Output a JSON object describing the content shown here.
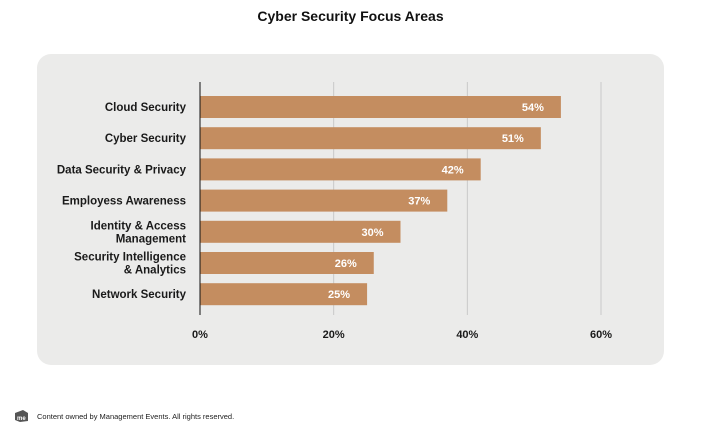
{
  "chart_data": {
    "type": "bar",
    "orientation": "horizontal",
    "title": "Cyber Security Focus Areas",
    "categories": [
      [
        "Cloud Security"
      ],
      [
        "Cyber Security"
      ],
      [
        "Data Security & Privacy"
      ],
      [
        "Employess Awareness"
      ],
      [
        "Identity & Access",
        "Management"
      ],
      [
        "Security Intelligence",
        "& Analytics"
      ],
      [
        "Network Security"
      ]
    ],
    "values": [
      54,
      51,
      42,
      37,
      30,
      26,
      25
    ],
    "value_labels": [
      "54%",
      "51%",
      "42%",
      "37%",
      "30%",
      "26%",
      "25%"
    ],
    "x_ticks": [
      0,
      20,
      40,
      60
    ],
    "x_tick_labels": [
      "0%",
      "20%",
      "40%",
      "60%"
    ],
    "xlim": [
      0,
      60
    ],
    "grid": true,
    "bar_color": "#c48d60",
    "panel_color": "#ebebea",
    "legend": "none"
  },
  "footer": {
    "logo_icon": "management-events-logo-icon",
    "text": "Content owned by Management Events. All rights reserved."
  }
}
